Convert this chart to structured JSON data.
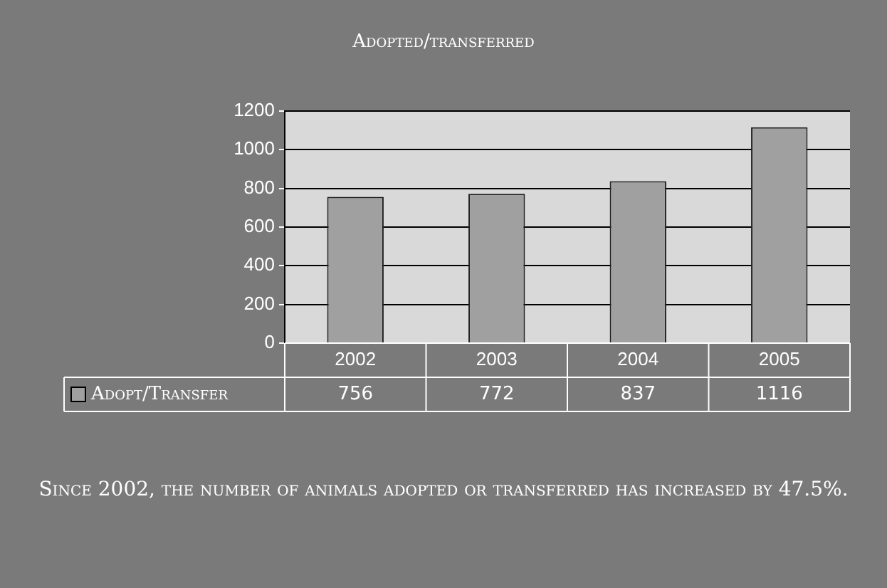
{
  "chart_data": {
    "type": "bar",
    "title": "Adopted/transferred",
    "categories": [
      "2002",
      "2003",
      "2004",
      "2005"
    ],
    "series": [
      {
        "name": "Adopt/Transfer",
        "color": "#a0a0a0",
        "values": [
          756,
          772,
          837,
          1116
        ]
      }
    ],
    "ylim": [
      0,
      1200
    ],
    "yticks": [
      0,
      200,
      400,
      600,
      800,
      1000,
      1200
    ],
    "grid": "y",
    "data_labels": true,
    "legend": "bottom",
    "annotations": [
      "Since 2002, the number of animals adopted or transferred has increased by 47.5%."
    ]
  }
}
